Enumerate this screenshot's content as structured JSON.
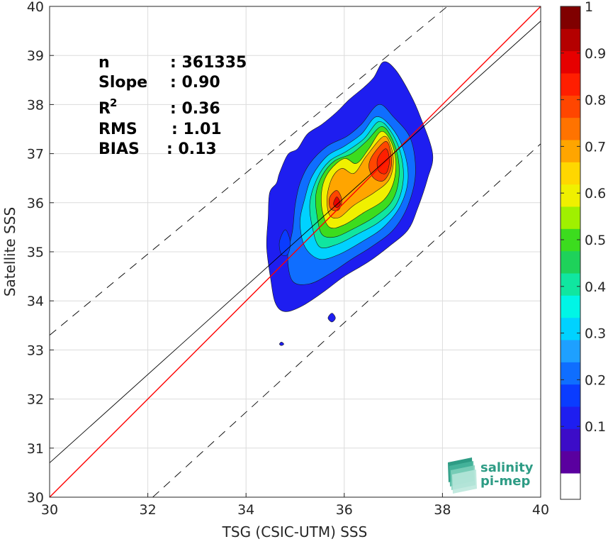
{
  "chart_data": {
    "type": "heatmap",
    "subtype": "normalized density contour scatter",
    "xlabel": "TSG (CSIC-UTM) SSS",
    "ylabel": "Satellite SSS",
    "xlim": [
      30,
      40
    ],
    "ylim": [
      30,
      40
    ],
    "xticks": [
      "30",
      "32",
      "34",
      "36",
      "38",
      "40"
    ],
    "yticks": [
      "30",
      "31",
      "32",
      "33",
      "34",
      "35",
      "36",
      "37",
      "38",
      "39",
      "40"
    ],
    "grid": true,
    "stats": [
      {
        "label": "n",
        "value": ": 361335"
      },
      {
        "label": "Slope",
        "value": ": 0.90"
      },
      {
        "label": "R",
        "sup": "2",
        "value": ": 0.36"
      },
      {
        "label": "RMS",
        "value": ": 1.01"
      },
      {
        "label": "BIAS",
        "value": ": 0.13"
      }
    ],
    "reference_lines": [
      {
        "kind": "one-to-one",
        "color": "#ff0000",
        "style": "solid",
        "x": [
          30,
          40
        ],
        "y": [
          30,
          40
        ]
      },
      {
        "kind": "regression",
        "color": "#000000",
        "style": "solid",
        "x": [
          30,
          40
        ],
        "y": [
          30.7,
          39.7
        ]
      },
      {
        "kind": "upper-bound",
        "color": "#000000",
        "style": "dashed",
        "x": [
          30,
          38.1
        ],
        "y": [
          33.3,
          40
        ]
      },
      {
        "kind": "lower-bound",
        "color": "#000000",
        "style": "dashed",
        "x": [
          32.1,
          40
        ],
        "y": [
          30,
          37.2
        ]
      }
    ],
    "colorbar": {
      "min": 0,
      "max": 1,
      "ticks": [
        "0.1",
        "0.2",
        "0.3",
        "0.4",
        "0.5",
        "0.6",
        "0.7",
        "0.8",
        "0.9",
        "1"
      ],
      "colors": [
        "#5a009f",
        "#3c0cc8",
        "#1e1ef0",
        "#0a3cff",
        "#0f6eff",
        "#1ea0ff",
        "#00d2ff",
        "#00f5e6",
        "#10e6a0",
        "#1ed25a",
        "#3cdc1e",
        "#a0f000",
        "#f0f000",
        "#ffd700",
        "#ffa500",
        "#ff7300",
        "#ff4600",
        "#ff1e00",
        "#e60000",
        "#b40000",
        "#800000"
      ]
    },
    "density_levels": [
      {
        "level": 0.1,
        "points": [
          [
            36.8,
            38.87
          ],
          [
            37.05,
            38.7
          ],
          [
            37.35,
            38.2
          ],
          [
            37.55,
            37.75
          ],
          [
            37.8,
            37.0
          ],
          [
            37.7,
            36.5
          ],
          [
            37.5,
            35.9
          ],
          [
            37.3,
            35.45
          ],
          [
            36.9,
            35.1
          ],
          [
            36.5,
            34.8
          ],
          [
            36.0,
            34.5
          ],
          [
            35.6,
            34.2
          ],
          [
            35.15,
            33.9
          ],
          [
            34.8,
            33.78
          ],
          [
            34.6,
            33.95
          ],
          [
            34.5,
            34.45
          ],
          [
            34.42,
            35.1
          ],
          [
            34.45,
            35.7
          ],
          [
            34.48,
            36.2
          ],
          [
            34.62,
            36.4
          ],
          [
            34.68,
            36.6
          ],
          [
            34.85,
            36.98
          ],
          [
            35.05,
            37.1
          ],
          [
            35.25,
            37.4
          ],
          [
            35.55,
            37.6
          ],
          [
            35.85,
            37.85
          ],
          [
            36.1,
            38.1
          ],
          [
            36.4,
            38.35
          ],
          [
            36.6,
            38.55
          ]
        ]
      },
      {
        "level": 0.2,
        "points": [
          [
            36.7,
            38.0
          ],
          [
            37.0,
            37.75
          ],
          [
            37.35,
            37.3
          ],
          [
            37.45,
            36.6
          ],
          [
            37.3,
            35.95
          ],
          [
            37.0,
            35.45
          ],
          [
            36.55,
            35.1
          ],
          [
            36.15,
            34.85
          ],
          [
            35.7,
            34.55
          ],
          [
            35.3,
            34.35
          ],
          [
            34.95,
            34.4
          ],
          [
            34.85,
            34.9
          ],
          [
            34.95,
            35.45
          ],
          [
            35.0,
            35.95
          ],
          [
            35.1,
            36.4
          ],
          [
            35.3,
            36.8
          ],
          [
            35.65,
            37.15
          ],
          [
            36.05,
            37.35
          ],
          [
            36.35,
            37.6
          ]
        ]
      },
      {
        "level": 0.3,
        "points": [
          [
            36.65,
            37.75
          ],
          [
            36.95,
            37.55
          ],
          [
            37.2,
            37.1
          ],
          [
            37.3,
            36.5
          ],
          [
            37.15,
            35.95
          ],
          [
            36.8,
            35.5
          ],
          [
            36.35,
            35.2
          ],
          [
            35.9,
            34.95
          ],
          [
            35.5,
            34.85
          ],
          [
            35.2,
            35.1
          ],
          [
            35.1,
            35.6
          ],
          [
            35.2,
            36.1
          ],
          [
            35.35,
            36.55
          ],
          [
            35.65,
            36.95
          ],
          [
            36.0,
            37.15
          ],
          [
            36.35,
            37.4
          ]
        ]
      },
      {
        "level": 0.4,
        "points": [
          [
            36.7,
            37.65
          ],
          [
            36.95,
            37.45
          ],
          [
            37.15,
            37.0
          ],
          [
            37.2,
            36.45
          ],
          [
            37.05,
            35.95
          ],
          [
            36.7,
            35.6
          ],
          [
            36.25,
            35.35
          ],
          [
            35.85,
            35.15
          ],
          [
            35.5,
            35.1
          ],
          [
            35.35,
            35.5
          ],
          [
            35.3,
            36.0
          ],
          [
            35.45,
            36.5
          ],
          [
            35.7,
            36.85
          ],
          [
            36.05,
            37.05
          ],
          [
            36.4,
            37.3
          ]
        ]
      },
      {
        "level": 0.5,
        "points": [
          [
            36.75,
            37.55
          ],
          [
            36.95,
            37.35
          ],
          [
            37.1,
            36.9
          ],
          [
            37.1,
            36.4
          ],
          [
            36.95,
            36.0
          ],
          [
            36.6,
            35.7
          ],
          [
            36.15,
            35.45
          ],
          [
            35.8,
            35.3
          ],
          [
            35.55,
            35.35
          ],
          [
            35.45,
            35.7
          ],
          [
            35.42,
            36.15
          ],
          [
            35.55,
            36.55
          ],
          [
            35.8,
            36.85
          ],
          [
            36.15,
            37.0
          ],
          [
            36.45,
            37.25
          ]
        ]
      },
      {
        "level": 0.6,
        "points": [
          [
            36.75,
            37.45
          ],
          [
            36.95,
            37.25
          ],
          [
            37.05,
            36.85
          ],
          [
            37.0,
            36.4
          ],
          [
            36.8,
            36.05
          ],
          [
            36.4,
            35.8
          ],
          [
            36.0,
            35.55
          ],
          [
            35.7,
            35.5
          ],
          [
            35.55,
            35.85
          ],
          [
            35.55,
            36.3
          ],
          [
            35.7,
            36.65
          ],
          [
            36.0,
            36.9
          ],
          [
            36.25,
            36.8
          ],
          [
            36.5,
            37.1
          ]
        ]
      },
      {
        "level": 0.7,
        "points": [
          [
            36.8,
            37.35
          ],
          [
            36.95,
            37.15
          ],
          [
            37.0,
            36.8
          ],
          [
            36.9,
            36.45
          ],
          [
            36.6,
            36.2
          ],
          [
            36.2,
            35.95
          ],
          [
            35.9,
            35.7
          ],
          [
            35.7,
            35.75
          ],
          [
            35.65,
            36.1
          ],
          [
            35.75,
            36.5
          ],
          [
            35.95,
            36.7
          ],
          [
            36.2,
            36.6
          ],
          [
            36.45,
            36.95
          ]
        ]
      },
      {
        "level": 0.8,
        "points": [
          [
            36.85,
            37.25
          ],
          [
            36.95,
            37.0
          ],
          [
            36.95,
            36.7
          ],
          [
            36.8,
            36.45
          ],
          [
            36.6,
            36.5
          ],
          [
            36.5,
            36.75
          ],
          [
            36.6,
            37.0
          ]
        ]
      },
      {
        "level": 0.85,
        "points": [
          [
            36.85,
            37.1
          ],
          [
            36.92,
            36.85
          ],
          [
            36.85,
            36.6
          ],
          [
            36.7,
            36.65
          ],
          [
            36.68,
            36.9
          ]
        ]
      },
      {
        "level": 0.8,
        "points": [
          [
            35.85,
            36.25
          ],
          [
            35.95,
            36.05
          ],
          [
            35.88,
            35.85
          ],
          [
            35.72,
            35.88
          ],
          [
            35.7,
            36.1
          ]
        ]
      },
      {
        "level": 0.9,
        "points": [
          [
            35.85,
            36.12
          ],
          [
            35.92,
            35.98
          ],
          [
            35.85,
            35.9
          ],
          [
            35.78,
            35.98
          ]
        ]
      },
      {
        "level": 0.15,
        "points": [
          [
            34.8,
            35.45
          ],
          [
            34.9,
            35.2
          ],
          [
            34.85,
            34.95
          ],
          [
            34.72,
            34.95
          ],
          [
            34.68,
            35.2
          ]
        ]
      },
      {
        "level": 0.1,
        "points": [
          [
            35.75,
            33.75
          ],
          [
            35.82,
            33.65
          ],
          [
            35.75,
            33.57
          ],
          [
            35.67,
            33.65
          ]
        ]
      },
      {
        "level": 0.1,
        "points": [
          [
            34.72,
            33.16
          ],
          [
            34.77,
            33.12
          ],
          [
            34.72,
            33.09
          ],
          [
            34.68,
            33.12
          ]
        ]
      }
    ]
  },
  "logo": {
    "line1": "salinity",
    "line2": "pi-mep"
  }
}
